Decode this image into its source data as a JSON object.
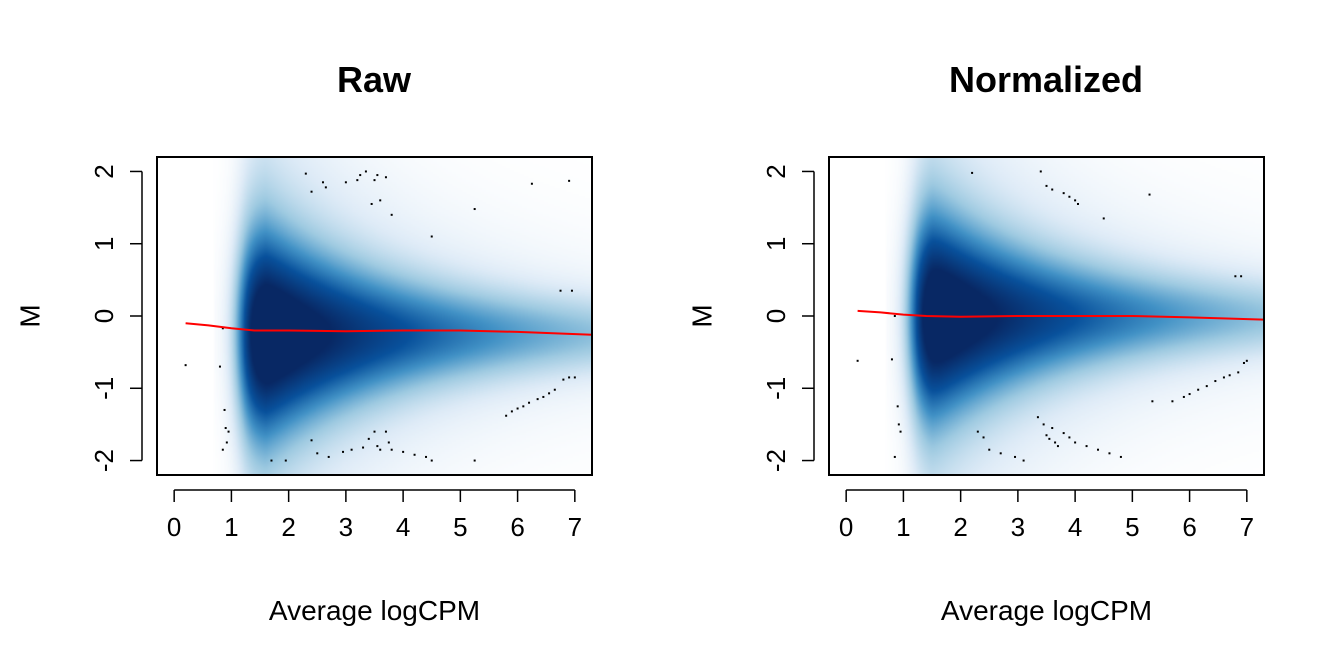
{
  "chart_data": [
    {
      "type": "scatter",
      "subtype": "smoothScatter MD plot",
      "title": "Raw",
      "xlabel": "Average logCPM",
      "ylabel": "M",
      "xlim": [
        -0.3,
        7.3
      ],
      "ylim": [
        -2.2,
        2.2
      ],
      "xticks": [
        0,
        1,
        2,
        3,
        4,
        5,
        6,
        7
      ],
      "yticks": [
        -2,
        -1,
        0,
        1,
        2
      ],
      "grid": false,
      "density_color": "#08519c",
      "trend_color": "#ff0000",
      "point_color": "#000000",
      "density": {
        "x_range": [
          0.9,
          7.3
        ],
        "peak_x": 1.6,
        "center_m": -0.25,
        "spread_near_peak": 0.9,
        "spread_at_high_logcpm": 0.3
      },
      "trend_line": {
        "x": [
          0.2,
          0.6,
          1.0,
          1.4,
          2.0,
          3.0,
          4.0,
          5.0,
          6.0,
          7.3
        ],
        "y": [
          -0.1,
          -0.13,
          -0.17,
          -0.2,
          -0.2,
          -0.21,
          -0.2,
          -0.2,
          -0.22,
          -0.26
        ]
      },
      "points": [
        [
          0.2,
          -0.68
        ],
        [
          0.8,
          -0.7
        ],
        [
          0.85,
          -0.17
        ],
        [
          0.88,
          -1.3
        ],
        [
          0.9,
          -1.55
        ],
        [
          0.92,
          -1.75
        ],
        [
          0.85,
          -1.85
        ],
        [
          0.95,
          -1.6
        ],
        [
          1.7,
          -2.0
        ],
        [
          1.95,
          -2.0
        ],
        [
          2.4,
          -1.72
        ],
        [
          2.5,
          -1.9
        ],
        [
          2.7,
          -1.95
        ],
        [
          2.95,
          -1.88
        ],
        [
          3.1,
          -1.85
        ],
        [
          3.3,
          -1.82
        ],
        [
          3.4,
          -1.7
        ],
        [
          3.5,
          -1.6
        ],
        [
          3.55,
          -1.8
        ],
        [
          3.6,
          -1.85
        ],
        [
          3.7,
          -1.6
        ],
        [
          3.75,
          -1.75
        ],
        [
          3.8,
          -1.85
        ],
        [
          4.0,
          -1.88
        ],
        [
          4.2,
          -1.92
        ],
        [
          4.4,
          -1.95
        ],
        [
          4.5,
          -2.0
        ],
        [
          5.25,
          -2.0
        ],
        [
          2.3,
          1.97
        ],
        [
          2.4,
          1.72
        ],
        [
          2.6,
          1.85
        ],
        [
          2.65,
          1.78
        ],
        [
          3.0,
          1.85
        ],
        [
          3.2,
          1.88
        ],
        [
          3.25,
          1.95
        ],
        [
          3.35,
          2.0
        ],
        [
          3.5,
          1.88
        ],
        [
          3.55,
          1.95
        ],
        [
          3.7,
          1.92
        ],
        [
          3.6,
          1.6
        ],
        [
          3.45,
          1.55
        ],
        [
          3.8,
          1.4
        ],
        [
          4.5,
          1.1
        ],
        [
          5.25,
          1.48
        ],
        [
          6.25,
          1.83
        ],
        [
          6.9,
          1.87
        ],
        [
          6.75,
          0.35
        ],
        [
          6.95,
          0.35
        ],
        [
          5.8,
          -1.38
        ],
        [
          5.9,
          -1.32
        ],
        [
          6.0,
          -1.28
        ],
        [
          6.1,
          -1.25
        ],
        [
          6.2,
          -1.2
        ],
        [
          6.35,
          -1.15
        ],
        [
          6.45,
          -1.12
        ],
        [
          6.55,
          -1.07
        ],
        [
          6.65,
          -1.02
        ],
        [
          6.8,
          -0.88
        ],
        [
          6.9,
          -0.85
        ],
        [
          7.0,
          -0.85
        ]
      ]
    },
    {
      "type": "scatter",
      "subtype": "smoothScatter MD plot",
      "title": "Normalized",
      "xlabel": "Average logCPM",
      "ylabel": "M",
      "xlim": [
        -0.3,
        7.3
      ],
      "ylim": [
        -2.2,
        2.2
      ],
      "xticks": [
        0,
        1,
        2,
        3,
        4,
        5,
        6,
        7
      ],
      "yticks": [
        -2,
        -1,
        0,
        1,
        2
      ],
      "grid": false,
      "density_color": "#08519c",
      "trend_color": "#ff0000",
      "point_color": "#000000",
      "density": {
        "x_range": [
          0.9,
          7.3
        ],
        "peak_x": 1.5,
        "center_m": 0.0,
        "spread_near_peak": 0.9,
        "spread_at_high_logcpm": 0.3
      },
      "trend_line": {
        "x": [
          0.2,
          0.6,
          1.0,
          1.4,
          2.0,
          3.0,
          4.0,
          5.0,
          6.0,
          7.3
        ],
        "y": [
          0.07,
          0.05,
          0.02,
          0.0,
          -0.01,
          0.0,
          0.0,
          0.0,
          -0.02,
          -0.05
        ]
      },
      "points": [
        [
          0.2,
          -0.62
        ],
        [
          0.8,
          -0.6
        ],
        [
          0.85,
          0.0
        ],
        [
          0.9,
          -1.25
        ],
        [
          0.92,
          -1.5
        ],
        [
          0.95,
          -1.6
        ],
        [
          0.85,
          -1.95
        ],
        [
          2.3,
          -1.6
        ],
        [
          2.4,
          -1.68
        ],
        [
          2.5,
          -1.85
        ],
        [
          2.7,
          -1.9
        ],
        [
          2.95,
          -1.95
        ],
        [
          3.1,
          -2.0
        ],
        [
          3.35,
          -1.4
        ],
        [
          3.45,
          -1.5
        ],
        [
          3.5,
          -1.65
        ],
        [
          3.55,
          -1.7
        ],
        [
          3.6,
          -1.55
        ],
        [
          3.65,
          -1.75
        ],
        [
          3.7,
          -1.8
        ],
        [
          3.8,
          -1.62
        ],
        [
          3.9,
          -1.68
        ],
        [
          4.0,
          -1.75
        ],
        [
          4.2,
          -1.8
        ],
        [
          4.4,
          -1.85
        ],
        [
          4.6,
          -1.9
        ],
        [
          4.8,
          -1.95
        ],
        [
          2.2,
          1.98
        ],
        [
          3.4,
          2.0
        ],
        [
          3.5,
          1.8
        ],
        [
          3.6,
          1.75
        ],
        [
          3.8,
          1.7
        ],
        [
          3.9,
          1.65
        ],
        [
          4.0,
          1.6
        ],
        [
          4.05,
          1.55
        ],
        [
          4.5,
          1.35
        ],
        [
          5.3,
          1.68
        ],
        [
          6.8,
          0.55
        ],
        [
          6.9,
          0.55
        ],
        [
          5.35,
          -1.18
        ],
        [
          5.7,
          -1.18
        ],
        [
          5.9,
          -1.12
        ],
        [
          6.0,
          -1.08
        ],
        [
          6.15,
          -1.02
        ],
        [
          6.3,
          -0.97
        ],
        [
          6.45,
          -0.9
        ],
        [
          6.6,
          -0.85
        ],
        [
          6.7,
          -0.82
        ],
        [
          6.85,
          -0.78
        ],
        [
          6.95,
          -0.65
        ],
        [
          7.0,
          -0.62
        ]
      ]
    }
  ]
}
